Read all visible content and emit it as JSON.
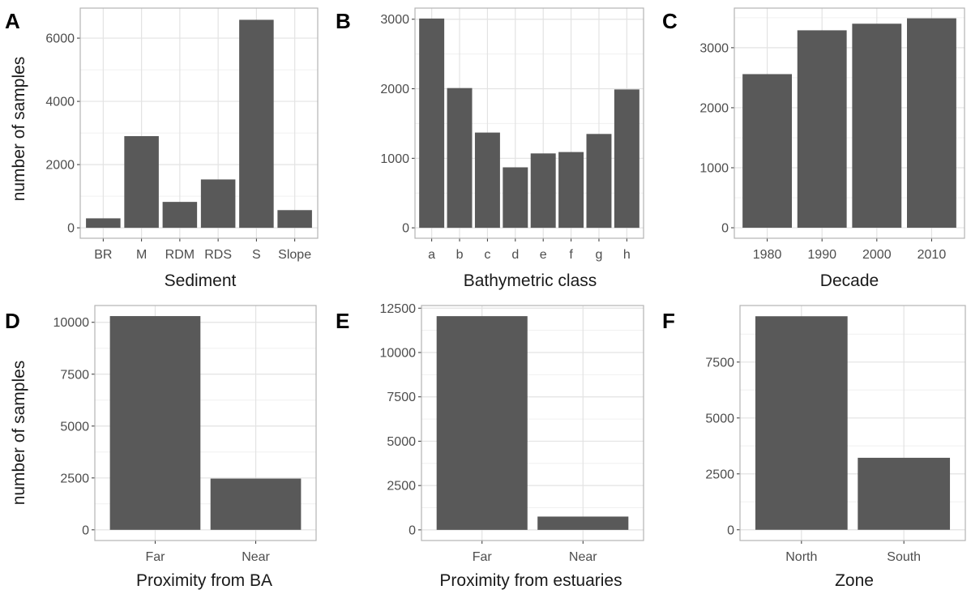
{
  "figure": {
    "ylabel": "number of samples",
    "panels": [
      {
        "letter": "A",
        "xlabel": "Sediment"
      },
      {
        "letter": "B",
        "xlabel": "Bathymetric class"
      },
      {
        "letter": "C",
        "xlabel": "Decade"
      },
      {
        "letter": "D",
        "xlabel": "Proximity from BA"
      },
      {
        "letter": "E",
        "xlabel": "Proximity from estuaries"
      },
      {
        "letter": "F",
        "xlabel": "Zone"
      }
    ]
  },
  "chart_data": [
    {
      "type": "bar",
      "title": "A",
      "xlabel": "Sediment",
      "ylabel": "number of samples",
      "categories": [
        "BR",
        "M",
        "RDM",
        "RDS",
        "S",
        "Slope"
      ],
      "values": [
        300,
        2900,
        820,
        1530,
        6580,
        560
      ],
      "ylim": [
        -330,
        6950
      ],
      "yticks": [
        0,
        2000,
        4000,
        6000
      ],
      "grid": true,
      "bar_color": "#595959"
    },
    {
      "type": "bar",
      "title": "B",
      "xlabel": "Bathymetric class",
      "ylabel": "",
      "categories": [
        "a",
        "b",
        "c",
        "d",
        "e",
        "f",
        "g",
        "h"
      ],
      "values": [
        3010,
        2010,
        1370,
        870,
        1070,
        1090,
        1350,
        1990
      ],
      "ylim": [
        -150,
        3160
      ],
      "yticks": [
        0,
        1000,
        2000,
        3000
      ],
      "grid": true,
      "bar_color": "#595959"
    },
    {
      "type": "bar",
      "title": "C",
      "xlabel": "Decade",
      "ylabel": "",
      "categories": [
        "1980",
        "1990",
        "2000",
        "2010"
      ],
      "values": [
        2560,
        3290,
        3400,
        3490
      ],
      "ylim": [
        -175,
        3660
      ],
      "yticks": [
        0,
        1000,
        2000,
        3000
      ],
      "grid": true,
      "bar_color": "#595959"
    },
    {
      "type": "bar",
      "title": "D",
      "xlabel": "Proximity from BA",
      "ylabel": "number of samples",
      "categories": [
        "Far",
        "Near"
      ],
      "values": [
        10300,
        2470
      ],
      "ylim": [
        -515,
        10810
      ],
      "yticks": [
        0,
        2500,
        5000,
        7500,
        10000
      ],
      "grid": true,
      "bar_color": "#595959"
    },
    {
      "type": "bar",
      "title": "E",
      "xlabel": "Proximity from estuaries",
      "ylabel": "",
      "categories": [
        "Far",
        "Near"
      ],
      "values": [
        12050,
        750
      ],
      "ylim": [
        -600,
        12650
      ],
      "yticks": [
        0,
        2500,
        5000,
        7500,
        10000,
        12500
      ],
      "grid": true,
      "bar_color": "#595959"
    },
    {
      "type": "bar",
      "title": "F",
      "xlabel": "Zone",
      "ylabel": "",
      "categories": [
        "North",
        "South"
      ],
      "values": [
        9550,
        3220
      ],
      "ylim": [
        -480,
        10030
      ],
      "yticks": [
        0,
        2500,
        5000,
        7500
      ],
      "grid": true,
      "bar_color": "#595959"
    }
  ]
}
